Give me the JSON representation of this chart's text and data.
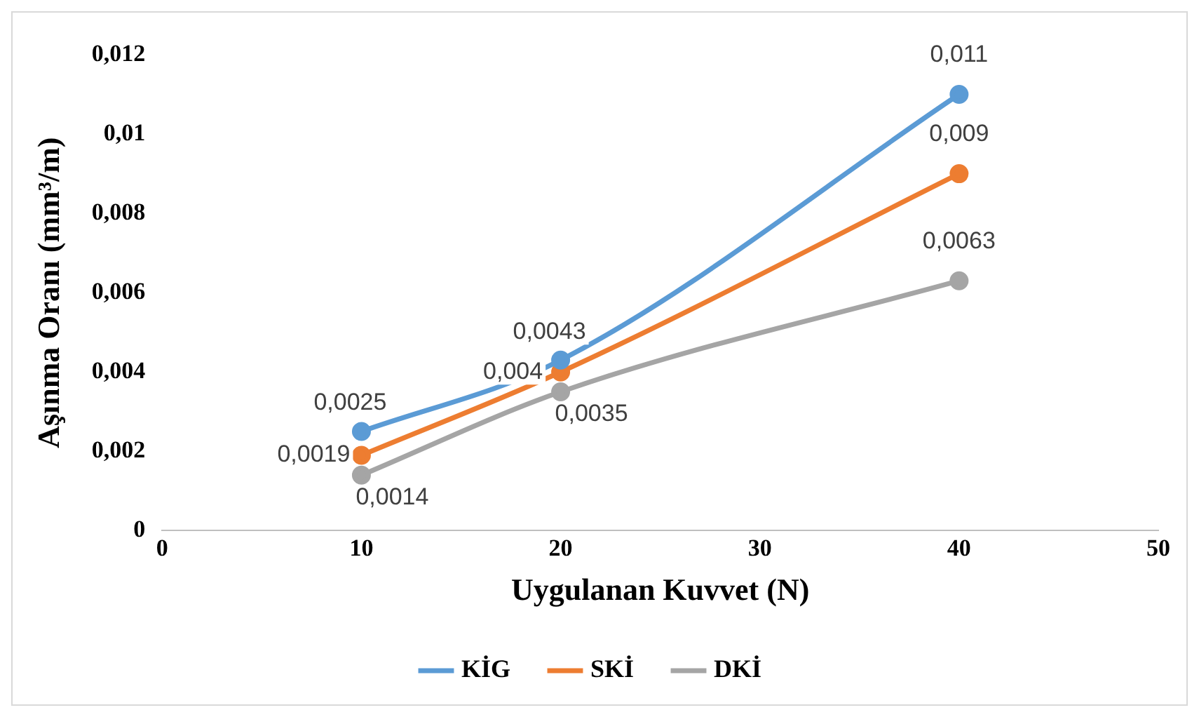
{
  "chart_data": {
    "type": "line",
    "xlabel": "Uygulanan Kuvvet (N)",
    "ylabel": "Aşınma Oranı (mm³/m)",
    "x": [
      10,
      20,
      40
    ],
    "series": [
      {
        "name": "KİG",
        "color": "#5b9bd5",
        "values": [
          0.0025,
          0.0043,
          0.011
        ],
        "value_labels": [
          "0,0025",
          "0,0043",
          "0,011"
        ]
      },
      {
        "name": "SKİ",
        "color": "#ed7d31",
        "values": [
          0.0019,
          0.004,
          0.009
        ],
        "value_labels": [
          "0,0019",
          "0,004",
          "0,009"
        ]
      },
      {
        "name": "DKİ",
        "color": "#a5a5a5",
        "values": [
          0.0014,
          0.0035,
          0.0063
        ],
        "value_labels": [
          "0,0014",
          "0,0035",
          "0,0063"
        ]
      }
    ],
    "xlim": [
      0,
      50
    ],
    "xticks": [
      0,
      10,
      20,
      30,
      40,
      50
    ],
    "ylim": [
      0,
      0.012
    ],
    "yticks": [
      0,
      {
        "value": 0.002,
        "label": "0,002"
      },
      {
        "value": 0.004,
        "label": "0,004"
      },
      {
        "value": 0.006,
        "label": "0,006"
      },
      {
        "value": 0.008,
        "label": "0,008"
      },
      {
        "value": 0.01,
        "label": "0,01"
      },
      {
        "value": 0.012,
        "label": "0,012"
      }
    ],
    "grid": false,
    "legend": "bottom",
    "marker": "circle",
    "line_style": "solid"
  }
}
